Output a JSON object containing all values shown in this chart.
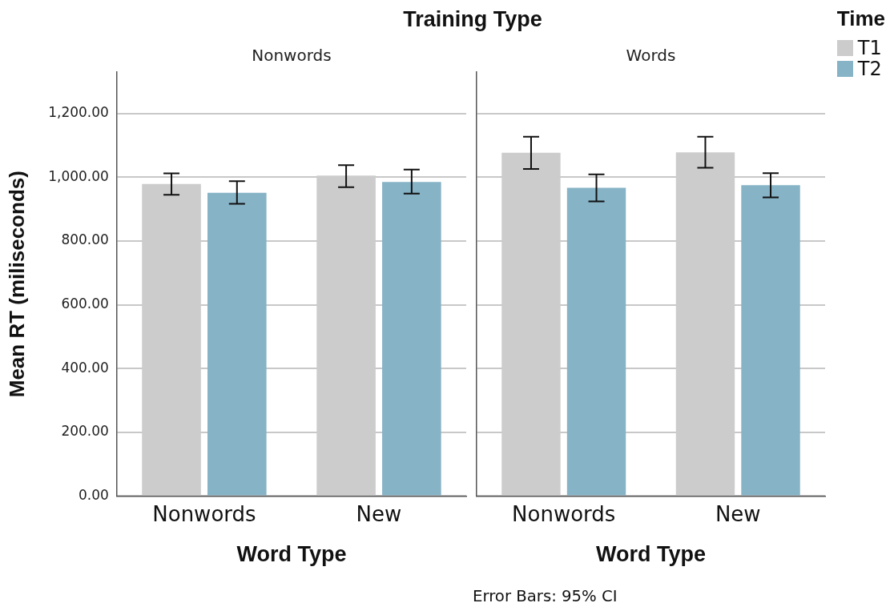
{
  "chart_data": [
    {
      "type": "bar",
      "title": "Training Type",
      "subtitle": "Nonwords",
      "xlabel": "Word Type",
      "ylabel": "Mean RT (miliseconds)",
      "categories": [
        "Nonwords",
        "New"
      ],
      "series": [
        {
          "color": "#cccccc",
          "values": [
            979,
            1005
          ],
          "errors": [
            [
              945,
              1012
            ],
            [
              969,
              1038
            ]
          ]
        },
        {
          "color": "#86b3c6",
          "values": [
            951,
            985
          ],
          "errors": [
            [
              917,
              988
            ],
            [
              949,
              1024
            ]
          ]
        }
      ],
      "ylim": [
        0,
        1330
      ],
      "yticks": [
        {
          "value": 0,
          "label": "0.00"
        },
        {
          "value": 200,
          "label": "200.00"
        },
        {
          "value": 400,
          "label": "400.00"
        },
        {
          "value": 600,
          "label": "600.00"
        },
        {
          "value": 800,
          "label": "800.00"
        },
        {
          "value": 1000,
          "label": "1,000.00"
        },
        {
          "value": 1200,
          "label": "1,200.00"
        }
      ],
      "grid": "y"
    },
    {
      "type": "bar",
      "subtitle": "Words",
      "xlabel": "Word Type",
      "legend_title": "Time",
      "legend": "top right",
      "tick_labels": "x",
      "categories": [
        "Nonwords",
        "New"
      ],
      "series": [
        {
          "name": "T1",
          "color": "#cccccc",
          "values": [
            1077,
            1078
          ],
          "errors": [
            [
              1026,
              1127
            ],
            [
              1030,
              1127
            ]
          ]
        },
        {
          "name": "T2",
          "color": "#86b3c6",
          "values": [
            967,
            975
          ],
          "errors": [
            [
              924,
              1009
            ],
            [
              937,
              1013
            ]
          ]
        }
      ],
      "ylim": [
        0,
        1330
      ],
      "yticks": [
        {
          "value": 0,
          "label": null
        },
        {
          "value": 200,
          "label": null
        },
        {
          "value": 400,
          "label": null
        },
        {
          "value": 600,
          "label": null
        },
        {
          "value": 800,
          "label": null
        },
        {
          "value": 1000,
          "label": null
        },
        {
          "value": 1200,
          "label": null
        }
      ],
      "grid": "y",
      "annotations": [
        "Error Bars: 95% CI"
      ]
    }
  ]
}
